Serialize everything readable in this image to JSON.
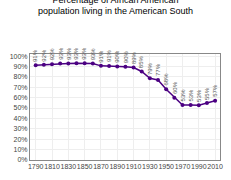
{
  "chart_data": {
    "type": "line",
    "title": "Percentage of African American\npopulation living in the American South",
    "x": [
      1790,
      1800,
      1810,
      1820,
      1830,
      1840,
      1850,
      1860,
      1870,
      1880,
      1890,
      1900,
      1910,
      1920,
      1930,
      1940,
      1950,
      1960,
      1970,
      1980,
      1990,
      2000,
      2010
    ],
    "values": [
      91.1,
      91.6,
      92.1,
      92.8,
      92.8,
      93.0,
      93.2,
      92.8,
      90.6,
      90.5,
      90.0,
      89.7,
      89.0,
      85.2,
      78.7,
      77.0,
      68.0,
      60.0,
      53.0,
      53.0,
      52.8,
      54.8,
      57.0
    ],
    "value_labels": [
      "91%",
      "92%",
      "92%",
      "93%",
      "93%",
      "93%",
      "93%",
      "93%",
      "91%",
      "91%",
      "90%",
      "90%",
      "89%",
      "85%",
      "79%",
      "77%",
      "68%",
      "60%",
      "53%",
      "53%",
      "53%",
      "55%",
      "57%"
    ],
    "data_labels": true,
    "color": "#4B0082",
    "marker": "circle",
    "xlim": [
      1783,
      2016
    ],
    "xticks": [
      1790,
      1810,
      1830,
      1850,
      1870,
      1890,
      1910,
      1930,
      1950,
      1970,
      1990,
      2010
    ],
    "ylim": [
      0,
      102
    ],
    "yticks": [
      {
        "value": 0,
        "label": "0%"
      },
      {
        "value": 10,
        "label": "10%"
      },
      {
        "value": 20,
        "label": "20%"
      },
      {
        "value": 30,
        "label": "30%"
      },
      {
        "value": 40,
        "label": "40%"
      },
      {
        "value": 50,
        "label": "50%"
      },
      {
        "value": 60,
        "label": "60%"
      },
      {
        "value": 70,
        "label": "70%"
      },
      {
        "value": 80,
        "label": "80%"
      },
      {
        "value": 90,
        "label": "90%"
      },
      {
        "value": 100,
        "label": "100%"
      }
    ],
    "grid": true
  }
}
